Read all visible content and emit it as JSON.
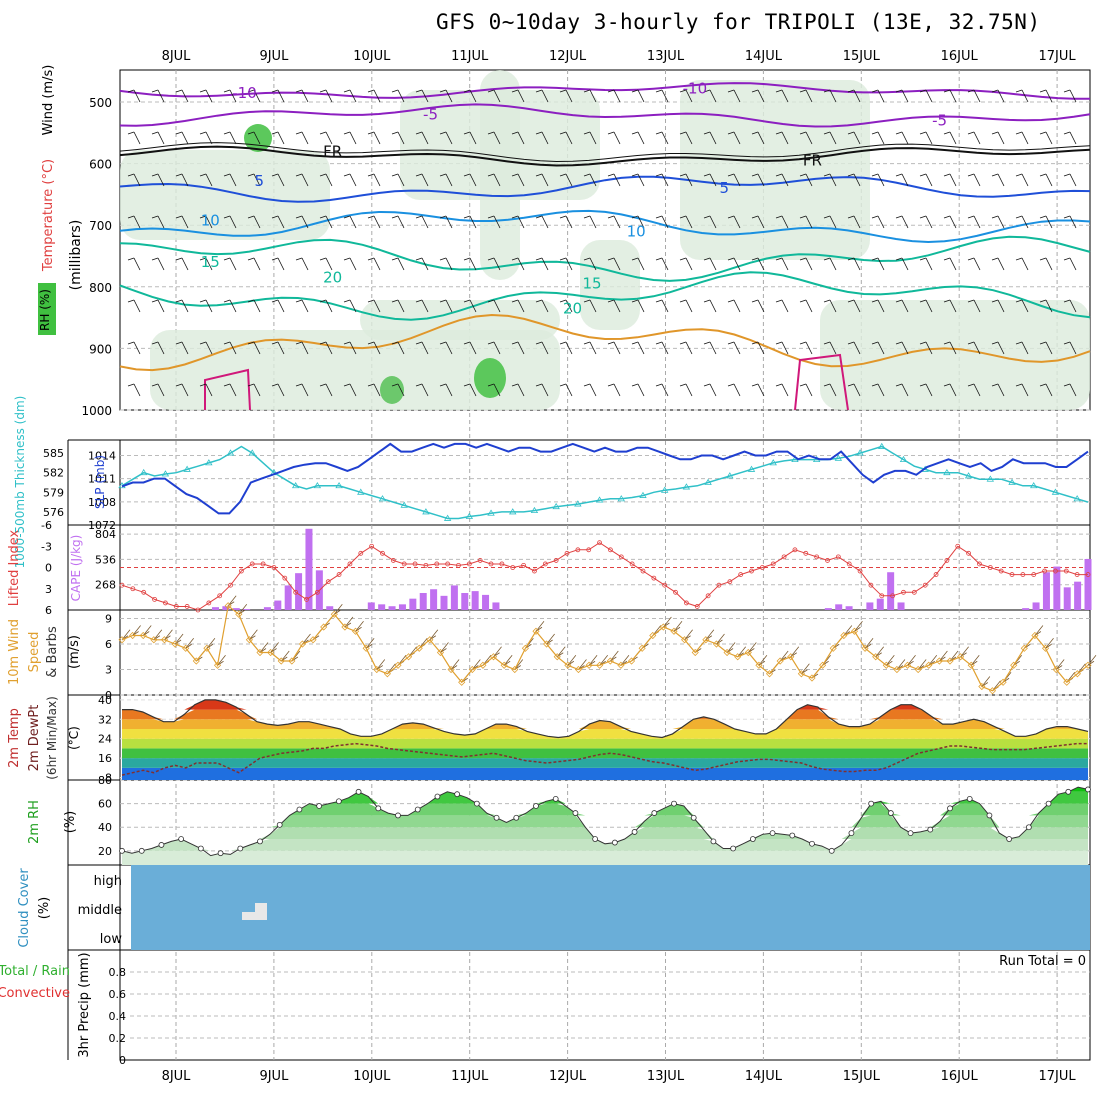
{
  "title": "GFS 0~10day 3-hourly for TRIPOLI (13E, 32.75N)",
  "colors": {
    "purple": "#8c1fc0",
    "black": "#111111",
    "blue": "#1f4fd8",
    "skyblue": "#1a90e0",
    "teal": "#10b89a",
    "orange": "#e0962a",
    "magenta": "#d0187a",
    "thickness": "#30c0c8",
    "slp": "#1f3fd0",
    "li": "#e04040",
    "cape": "#c070f0",
    "wind10": "#e0a030",
    "cloud": "#6aaed8",
    "rh_green": "#30d030"
  },
  "chart_data": [
    {
      "type": "line",
      "panel": "upper-air",
      "ylabel": "Wind (m/s)",
      "ylabel2": "Temperature (°C)",
      "ylabel3": "(millibars)",
      "rh_label": "RH (%)",
      "ylim": [
        1000,
        450
      ],
      "yticks": [
        500,
        600,
        700,
        800,
        900,
        1000
      ],
      "x_days": [
        "8JUL",
        "9JUL",
        "10JUL",
        "11JUL",
        "12JUL",
        "13JUL",
        "14JUL",
        "15JUL",
        "16JUL",
        "17JUL"
      ],
      "contour_labels": [
        {
          "text": "-10",
          "day": 0.7,
          "p": 485,
          "c": "purple"
        },
        {
          "text": "-10",
          "day": 5.3,
          "p": 478,
          "c": "purple"
        },
        {
          "text": "-5",
          "day": 2.6,
          "p": 520,
          "c": "purple"
        },
        {
          "text": "-5",
          "day": 7.8,
          "p": 530,
          "c": "purple"
        },
        {
          "text": "FR",
          "day": 1.6,
          "p": 580,
          "c": "black"
        },
        {
          "text": "FR",
          "day": 6.5,
          "p": 595,
          "c": "black"
        },
        {
          "text": "5",
          "day": 0.85,
          "p": 628,
          "c": "blue"
        },
        {
          "text": "5",
          "day": 5.6,
          "p": 640,
          "c": "blue"
        },
        {
          "text": "10",
          "day": 0.35,
          "p": 692,
          "c": "skyblue"
        },
        {
          "text": "10",
          "day": 4.7,
          "p": 710,
          "c": "skyblue"
        },
        {
          "text": "15",
          "day": 0.35,
          "p": 760,
          "c": "teal"
        },
        {
          "text": "15",
          "day": 4.25,
          "p": 795,
          "c": "teal"
        },
        {
          "text": "20",
          "day": 1.6,
          "p": 785,
          "c": "teal"
        },
        {
          "text": "20",
          "day": 4.05,
          "p": 835,
          "c": "teal"
        }
      ]
    },
    {
      "type": "line",
      "panel": "thickness-slp",
      "ylabel": "1000-500mb Thickness (dm)",
      "ylabel2": "SLP (mb)",
      "thickness_ticks": [
        576,
        579,
        582,
        585
      ],
      "slp_ticks": [
        1008,
        1011,
        1014
      ],
      "extra_tick": "1072",
      "series": [
        {
          "name": "1000-500mb Thickness",
          "units": "dm",
          "ylim": [
            574,
            587
          ],
          "values": [
            580,
            581,
            582,
            581.5,
            581.8,
            582,
            582.5,
            583,
            583.5,
            584,
            585,
            586,
            585,
            583.5,
            582,
            581,
            580,
            579.5,
            580,
            580,
            580,
            579.5,
            579,
            578.5,
            578,
            577.5,
            577,
            576.5,
            576,
            575.5,
            575,
            575,
            575.3,
            575.5,
            575.8,
            576,
            576,
            576,
            576.2,
            576.5,
            576.8,
            577,
            577.2,
            577.5,
            577.8,
            578,
            578,
            578.2,
            578.5,
            579,
            579.3,
            579.5,
            579.8,
            580,
            580.5,
            581,
            581.5,
            582,
            582.5,
            583,
            583.5,
            583.8,
            584,
            584,
            584,
            584,
            584.2,
            584.5,
            585,
            585.5,
            586,
            585,
            584,
            583,
            582.5,
            582,
            582,
            582,
            581.5,
            581,
            581,
            581,
            580.5,
            580,
            580,
            579.5,
            579,
            578.5,
            578,
            577.5
          ]
        },
        {
          "name": "SLP",
          "units": "mb",
          "ylim": [
            1005,
            1016
          ],
          "values": [
            1010,
            1010.5,
            1010.5,
            1011,
            1011,
            1010,
            1009,
            1008.5,
            1007.5,
            1006.5,
            1006.5,
            1008,
            1010.5,
            1011,
            1011.5,
            1012,
            1012.5,
            1012.8,
            1013,
            1013,
            1012.5,
            1012,
            1012.5,
            1013.5,
            1014.5,
            1015.5,
            1014.5,
            1014.5,
            1015,
            1015.5,
            1015,
            1015.5,
            1015.5,
            1015,
            1015.5,
            1015,
            1014.5,
            1015,
            1015,
            1014.5,
            1014.5,
            1015,
            1015.5,
            1015,
            1014.5,
            1015,
            1014.5,
            1014.5,
            1015,
            1015,
            1014.5,
            1014,
            1013.5,
            1013.5,
            1014,
            1014,
            1013.5,
            1014,
            1014.5,
            1014,
            1014,
            1014.5,
            1014.5,
            1013.5,
            1014,
            1013.5,
            1013.5,
            1014.5,
            1013,
            1011.5,
            1010.5,
            1011.5,
            1012,
            1012,
            1011.5,
            1012.5,
            1013,
            1013.5,
            1013,
            1012.5,
            1013,
            1012,
            1012.5,
            1013.5,
            1013,
            1013,
            1013,
            1012.5,
            1012.5,
            1013.5,
            1014.5
          ]
        }
      ]
    },
    {
      "type": "bar",
      "panel": "stability",
      "ylabel": "Lifted Index",
      "ylabel2": "CAPE (J/kg)",
      "li_ticks": [
        "-6",
        "-3",
        "0",
        "3",
        "6"
      ],
      "cape_ticks": [
        268,
        536,
        804
      ],
      "series": [
        {
          "name": "Lifted Index",
          "ylim": [
            6,
            -6
          ],
          "values": [
            2.5,
            3,
            3.5,
            4.5,
            5,
            5.5,
            5.5,
            6,
            5,
            4,
            2.5,
            0.5,
            -0.5,
            -0.5,
            0,
            1.5,
            3.5,
            4.5,
            3.5,
            2,
            1,
            -0.5,
            -2,
            -3,
            -2,
            -1,
            -0.5,
            -0.5,
            -0.3,
            -0.5,
            -0.5,
            -0.3,
            -0.5,
            -1,
            -0.5,
            -0.5,
            0,
            -0.3,
            0.5,
            -0.5,
            -1,
            -2,
            -2.5,
            -2.5,
            -3.5,
            -2.5,
            -1.5,
            -0.5,
            0.5,
            1.5,
            2.5,
            3.5,
            5,
            5.5,
            4,
            2.5,
            2,
            1,
            0.5,
            0,
            -0.5,
            -1.5,
            -2.5,
            -2,
            -1.5,
            -1,
            -1.5,
            -0.5,
            0.5,
            2.5,
            4,
            4,
            3.5,
            3.5,
            2.5,
            1,
            -1,
            -3,
            -2,
            -0.5,
            0,
            0.5,
            1,
            1,
            1,
            0.5,
            0.5,
            0.5,
            1,
            1
          ]
        },
        {
          "name": "CAPE",
          "units": "J/kg",
          "ylim": [
            0,
            900
          ],
          "values": [
            0,
            0,
            0,
            0,
            0,
            0,
            0,
            0,
            0,
            30,
            40,
            20,
            10,
            0,
            30,
            100,
            260,
            390,
            860,
            420,
            40,
            0,
            0,
            0,
            80,
            60,
            40,
            60,
            120,
            180,
            220,
            150,
            260,
            180,
            200,
            160,
            80,
            0,
            0,
            0,
            0,
            0,
            0,
            0,
            0,
            0,
            0,
            0,
            0,
            0,
            0,
            0,
            0,
            0,
            0,
            0,
            0,
            0,
            0,
            0,
            0,
            0,
            0,
            0,
            0,
            0,
            0,
            0,
            20,
            60,
            40,
            0,
            80,
            120,
            400,
            80,
            0,
            0,
            0,
            0,
            0,
            0,
            0,
            0,
            0,
            0,
            0,
            20,
            80,
            400,
            460,
            240,
            300,
            540
          ]
        }
      ]
    },
    {
      "type": "line",
      "panel": "wind10m",
      "ylabel": "10m Wind Speed & Barbs (m/s)",
      "ylim": [
        0,
        10
      ],
      "yticks": [
        0,
        3,
        6,
        9
      ],
      "series": [
        {
          "name": "10m Wind Speed",
          "values": [
            6.5,
            7,
            7,
            6.5,
            6.5,
            6,
            5.5,
            4,
            5.5,
            3.5,
            10.5,
            9.5,
            6.5,
            5,
            5,
            4,
            4,
            6,
            6.5,
            8,
            9.5,
            8,
            7.5,
            5.5,
            3,
            2.5,
            3.5,
            4.5,
            5.5,
            6.5,
            5,
            3,
            1.5,
            3,
            3.5,
            4.5,
            3.5,
            3,
            5.5,
            7.5,
            6,
            4.5,
            3.5,
            3,
            3.5,
            3.5,
            4,
            3.5,
            4,
            5.5,
            7,
            8,
            7.5,
            6.5,
            5,
            6.5,
            6,
            5,
            4.5,
            5,
            3.5,
            2.5,
            4,
            4.5,
            2.5,
            2,
            3.5,
            5.5,
            7,
            7.5,
            5.5,
            4.5,
            3.5,
            3,
            3.5,
            3,
            3.5,
            4,
            4,
            4.5,
            3.5,
            1,
            0.5,
            1.5,
            3.5,
            5.5,
            7,
            5.5,
            3,
            1.5,
            2.5,
            3.5
          ]
        }
      ]
    },
    {
      "type": "area",
      "panel": "temperature",
      "ylabel": "2m Temp 2m DewPt (6hr Min/Max) (°C)",
      "ylim": [
        7,
        42
      ],
      "yticks": [
        8,
        16,
        24,
        32,
        40
      ],
      "series": [
        {
          "name": "2m Temp",
          "values": [
            36,
            36,
            35,
            33,
            31,
            31,
            34,
            38,
            40,
            40,
            39,
            37,
            34,
            31,
            30,
            29.5,
            30,
            31,
            31,
            30,
            29,
            28,
            26,
            25,
            25,
            26,
            28,
            30,
            30.5,
            30,
            28.5,
            27,
            26,
            25.5,
            26,
            28,
            30,
            30,
            29,
            27,
            26,
            25,
            24.5,
            25,
            27,
            30,
            31.5,
            31,
            29,
            27,
            26,
            25,
            24.5,
            26,
            29,
            32,
            33,
            32,
            30,
            28,
            27,
            26,
            26,
            28,
            32,
            36,
            38,
            37,
            33,
            30,
            29,
            29,
            30,
            33,
            36,
            38,
            38,
            36,
            33,
            30,
            30,
            31,
            32,
            31,
            29,
            27,
            25,
            25,
            26,
            28,
            29,
            29,
            28,
            27
          ]
        },
        {
          "name": "2m DewPt",
          "values": [
            9,
            10,
            11,
            10,
            12,
            13,
            12,
            14,
            14,
            14,
            12,
            10,
            13,
            16,
            17,
            18,
            18.5,
            19,
            20,
            20,
            21,
            21.5,
            22,
            21.5,
            21,
            20,
            19.5,
            19,
            18.5,
            18,
            17.5,
            17,
            16.5,
            17,
            17.5,
            18,
            17,
            16,
            15,
            14.5,
            14,
            14.5,
            15,
            15.5,
            16.5,
            17.5,
            18,
            17.5,
            16.5,
            15.5,
            14.5,
            14,
            13,
            12,
            11,
            11.5,
            12.5,
            13.5,
            14.5,
            15,
            15.5,
            15.5,
            15,
            14.5,
            14,
            12.5,
            11.5,
            11,
            10.5,
            10.5,
            11,
            11,
            12,
            14,
            16,
            18,
            19,
            20,
            21,
            21,
            20.5,
            20,
            19.5,
            19.5,
            19.5,
            19.5,
            20,
            20.5,
            21,
            21.5,
            22,
            22
          ]
        }
      ]
    },
    {
      "type": "area",
      "panel": "rh2m",
      "ylabel": "2m RH (%)",
      "ylim": [
        8,
        80
      ],
      "yticks": [
        20,
        40,
        60,
        80
      ],
      "series": [
        {
          "name": "2m RH",
          "values": [
            20,
            18,
            20,
            22,
            25,
            28,
            30,
            26,
            22,
            16,
            18,
            17,
            22,
            25,
            28,
            34,
            42,
            50,
            55,
            60,
            58,
            60,
            62,
            65,
            70,
            66,
            56,
            52,
            50,
            50,
            55,
            60,
            66,
            70,
            68,
            65,
            60,
            52,
            48,
            44,
            48,
            52,
            58,
            62,
            64,
            58,
            52,
            40,
            30,
            26,
            27,
            30,
            36,
            45,
            52,
            56,
            60,
            58,
            48,
            38,
            28,
            22,
            22,
            26,
            30,
            34,
            35,
            34,
            33,
            30,
            26,
            24,
            20,
            25,
            35,
            48,
            60,
            62,
            52,
            40,
            35,
            36,
            38,
            45,
            56,
            62,
            64,
            60,
            50,
            35,
            30,
            32,
            40,
            52,
            60,
            68,
            70,
            74,
            72
          ]
        }
      ]
    },
    {
      "type": "area",
      "panel": "cloud",
      "ylabel": "Cloud Cover (%)",
      "levels": [
        "high",
        "middle",
        "low"
      ]
    },
    {
      "type": "bar",
      "panel": "precip",
      "ylabel": "3hr Precip (mm)",
      "legend_total": "Total / Rain",
      "legend_conv": "Convective",
      "run_total": "Run Total = 0",
      "ylim": [
        0,
        1
      ],
      "yticks": [
        "0",
        "0.2",
        "0.4",
        "0.6",
        "0.8"
      ],
      "values": [
        0,
        0,
        0,
        0,
        0,
        0,
        0,
        0,
        0,
        0
      ]
    }
  ]
}
